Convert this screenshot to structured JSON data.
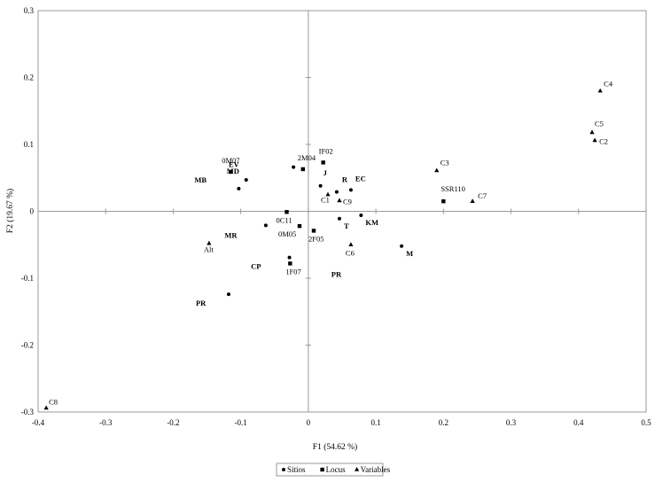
{
  "chart_data": {
    "type": "scatter",
    "xlabel": "F1 (54.62 %)",
    "ylabel": "F2 (19.67 %)",
    "xlim": [
      -0.4,
      0.5
    ],
    "ylim": [
      -0.3,
      0.3
    ],
    "x_ticks": [
      "-0.4",
      "-0.3",
      "-0.2",
      "-0.1",
      "0",
      "0.1",
      "0.2",
      "0.3",
      "0.4",
      "0.5"
    ],
    "y_ticks": [
      "0.3",
      "0.2",
      "0.1",
      "0",
      "-0.1",
      "-0.2",
      "-0.3"
    ],
    "grid": false,
    "legend_position": "bottom",
    "series": [
      {
        "name": "Sitios",
        "marker": "circle",
        "points": [
          {
            "x": -0.092,
            "y": 0.047,
            "label": "MD",
            "bold": true
          },
          {
            "x": -0.103,
            "y": 0.034,
            "label": "MB",
            "bold": true
          },
          {
            "x": -0.022,
            "y": 0.066,
            "label": "",
            "bold": false
          },
          {
            "x": 0.018,
            "y": 0.038,
            "label": "J",
            "bold": true
          },
          {
            "x": 0.042,
            "y": 0.029,
            "label": "R",
            "bold": true
          },
          {
            "x": 0.063,
            "y": 0.032,
            "label": "EC",
            "bold": true
          },
          {
            "x": -0.063,
            "y": -0.021,
            "label": "",
            "bold": false
          },
          {
            "x": 0.046,
            "y": -0.011,
            "label": "T",
            "bold": true
          },
          {
            "x": 0.078,
            "y": -0.006,
            "label": "KM",
            "bold": true
          },
          {
            "x": 0.138,
            "y": -0.052,
            "label": "M",
            "bold": true
          },
          {
            "x": -0.028,
            "y": -0.069,
            "label": "",
            "bold": false
          },
          {
            "x": -0.118,
            "y": -0.124,
            "label": "PR",
            "bold": true
          }
        ]
      },
      {
        "name": "Locus",
        "marker": "square",
        "points": [
          {
            "x": -0.115,
            "y": 0.059,
            "label": "0M07"
          },
          {
            "x": -0.008,
            "y": 0.063,
            "label": "2M04"
          },
          {
            "x": 0.022,
            "y": 0.073,
            "label": "IF02"
          },
          {
            "x": -0.032,
            "y": -0.001,
            "label": "0C11"
          },
          {
            "x": -0.013,
            "y": -0.022,
            "label": "0M05"
          },
          {
            "x": 0.008,
            "y": -0.029,
            "label": "2F05"
          },
          {
            "x": -0.027,
            "y": -0.078,
            "label": "1F07"
          },
          {
            "x": 0.2,
            "y": 0.015,
            "label": "SSR110"
          }
        ]
      },
      {
        "name": "Variables",
        "marker": "triangle",
        "points": [
          {
            "x": 0.432,
            "y": 0.18,
            "label": "C4",
            "bold": false
          },
          {
            "x": 0.42,
            "y": 0.118,
            "label": "C5",
            "bold": false
          },
          {
            "x": 0.424,
            "y": 0.106,
            "label": "C2",
            "bold": false
          },
          {
            "x": 0.19,
            "y": 0.061,
            "label": "C3",
            "bold": false
          },
          {
            "x": 0.243,
            "y": 0.015,
            "label": "C7",
            "bold": false
          },
          {
            "x": 0.029,
            "y": 0.025,
            "label": "C1",
            "bold": false
          },
          {
            "x": 0.046,
            "y": 0.016,
            "label": "C9",
            "bold": false
          },
          {
            "x": 0.063,
            "y": -0.05,
            "label": "C6",
            "bold": false
          },
          {
            "x": -0.147,
            "y": -0.048,
            "label": "Alt",
            "bold": false
          },
          {
            "x": -0.388,
            "y": -0.294,
            "label": "C8",
            "bold": false
          }
        ]
      }
    ],
    "free_labels": [
      {
        "x": -0.118,
        "y": 0.066,
        "text": "EV",
        "bold": true
      },
      {
        "x": -0.124,
        "y": -0.04,
        "text": "MR",
        "bold": true
      },
      {
        "x": -0.085,
        "y": -0.086,
        "text": "CP",
        "bold": true
      },
      {
        "x": 0.034,
        "y": -0.098,
        "text": "PR",
        "bold": true
      }
    ]
  }
}
